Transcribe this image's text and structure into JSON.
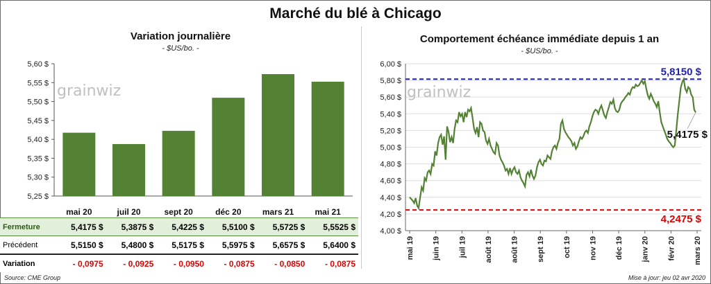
{
  "title": "Marché du blé à Chicago",
  "left": {
    "subtitle": "Variation  journalière",
    "unit": "- $US/bo. -"
  },
  "right": {
    "subtitle": "Comportement  échéance immédiate depuis 1 an",
    "unit": "- $US/bo. -"
  },
  "watermark": "grainwiz",
  "table": {
    "labels": [
      "Fermeture",
      "Précédent",
      "Variation"
    ],
    "currency": "$",
    "closing": [
      "5,4175",
      "5,3875",
      "5,4225",
      "5,5100",
      "5,5725",
      "5,5525"
    ],
    "previous": [
      "5,5150",
      "5,4800",
      "5,5175",
      "5,5975",
      "5,6575",
      "5,6400"
    ],
    "change": [
      "- 0,0975",
      "- 0,0925",
      "- 0,0950",
      "- 0,0875",
      "- 0,0850",
      "- 0,0875"
    ]
  },
  "footer": {
    "source": "Source: CME Group",
    "update": "Mise à jour: jeu 02 avr 2020"
  },
  "colors": {
    "bar": "#548235",
    "line": "#548235",
    "max_line": "#1f1fb4",
    "min_line": "#e00000"
  },
  "chart_data": [
    {
      "type": "bar",
      "categories": [
        "mai 20",
        "juil 20",
        "sept 20",
        "déc 20",
        "mars 21",
        "mai 21"
      ],
      "values": [
        5.4175,
        5.3875,
        5.4225,
        5.51,
        5.5725,
        5.5525
      ],
      "ylim": [
        5.25,
        5.6
      ],
      "yticks": [
        "5,25 $",
        "5,30 $",
        "5,35 $",
        "5,40 $",
        "5,45 $",
        "5,50 $",
        "5,55 $",
        "5,60 $"
      ],
      "grid": false
    },
    {
      "type": "line",
      "xlabels": [
        "mai 19",
        "juin 19",
        "juil 19",
        "août 19",
        "août 19",
        "sept 19",
        "oct 19",
        "nov 19",
        "déc 19",
        "janv 20",
        "févr 20",
        "mars 20"
      ],
      "ylim": [
        4.0,
        6.0
      ],
      "yticks": [
        "4,00 $",
        "4,20 $",
        "4,40 $",
        "4,60 $",
        "4,80 $",
        "5,00 $",
        "5,20 $",
        "5,40 $",
        "5,60 $",
        "5,80 $",
        "6,00 $"
      ],
      "grid": true,
      "max": {
        "value": 5.815,
        "label": "5,8150 $"
      },
      "min": {
        "value": 4.2475,
        "label": "4,2475 $"
      },
      "last": {
        "value": 5.4175,
        "label": "5,4175 $"
      },
      "series": [
        {
          "values": [
            4.4,
            4.38,
            4.36,
            4.33,
            4.39,
            4.3,
            4.27,
            4.4,
            4.52,
            4.48,
            4.63,
            4.6,
            4.7,
            4.72,
            4.68,
            4.8,
            4.78,
            4.95,
            4.9,
            5.05,
            5.12,
            5.15,
            5.03,
            5.13,
            4.85,
            5.25,
            5.18,
            5.06,
            5.12,
            5.05,
            5.22,
            5.32,
            5.3,
            5.42,
            5.37,
            5.4,
            5.3,
            5.42,
            5.36,
            5.45,
            5.43,
            5.47,
            5.35,
            5.22,
            5.17,
            5.24,
            5.12,
            5.3,
            5.28,
            5.2,
            5.18,
            5.08,
            5.04,
            5.1,
            5.02,
            4.98,
            4.94,
            4.92,
            5.05,
            5.02,
            4.9,
            4.85,
            4.82,
            4.78,
            4.72,
            4.74,
            4.68,
            4.75,
            4.68,
            4.73,
            4.76,
            4.7,
            4.68,
            4.72,
            4.64,
            4.6,
            4.57,
            4.53,
            4.67,
            4.7,
            4.65,
            4.73,
            4.66,
            4.62,
            4.66,
            4.76,
            4.82,
            4.85,
            4.8,
            4.78,
            4.84,
            4.83,
            4.9,
            4.88,
            4.86,
            4.95,
            5.0,
            5.02,
            4.98,
            5.05,
            5.1,
            5.28,
            5.32,
            5.22,
            5.18,
            5.15,
            5.12,
            5.1,
            5.07,
            5.02,
            5.05,
            4.98,
            5.01,
            5.07,
            5.12,
            5.1,
            5.13,
            5.18,
            5.2,
            5.17,
            5.25,
            5.3,
            5.37,
            5.42,
            5.45,
            5.44,
            5.4,
            5.46,
            5.5,
            5.44,
            5.38,
            5.35,
            5.42,
            5.48,
            5.54,
            5.52,
            5.57,
            5.47,
            5.43,
            5.42,
            5.45,
            5.52,
            5.55,
            5.57,
            5.6,
            5.62,
            5.65,
            5.63,
            5.69,
            5.72,
            5.71,
            5.75,
            5.73,
            5.74,
            5.77,
            5.8,
            5.76,
            5.79,
            5.7,
            5.62,
            5.58,
            5.64,
            5.6,
            5.55,
            5.52,
            5.48,
            5.55,
            5.42,
            5.3,
            5.25,
            5.2,
            5.15,
            5.1,
            5.07,
            5.05,
            5.02,
            5.0,
            5.02,
            5.2,
            5.39,
            5.55,
            5.71,
            5.78,
            5.815,
            5.7,
            5.66,
            5.72,
            5.7,
            5.63,
            5.6,
            5.45,
            5.4175
          ]
        }
      ]
    }
  ]
}
